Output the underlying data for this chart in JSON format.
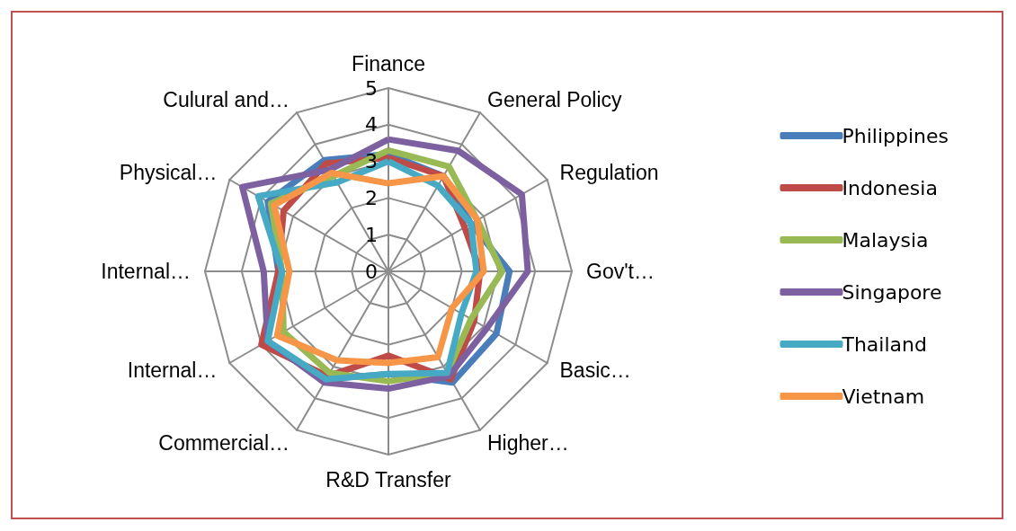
{
  "chart_data": {
    "type": "radar",
    "categories": [
      "Finance",
      "General Policy",
      "Regulation",
      "Gov't…",
      "Basic…",
      "Higher…",
      "R&D Transfer",
      "Commercial…",
      "Internal…",
      "Internal…",
      "Physical…",
      "Culural and…"
    ],
    "ylim": [
      0,
      5
    ],
    "yticks": [
      0,
      1,
      2,
      3,
      4,
      5
    ],
    "grid": true,
    "legend": "right",
    "marker": "none",
    "series": [
      {
        "name": "Philippines",
        "color": "#4a7ebb",
        "values": [
          3.2,
          3.0,
          2.6,
          3.3,
          3.4,
          3.5,
          2.8,
          3.4,
          3.9,
          3.0,
          3.8,
          3.5
        ]
      },
      {
        "name": "Indonesia",
        "color": "#be4b48",
        "values": [
          3.1,
          3.0,
          2.4,
          2.5,
          2.7,
          3.4,
          2.3,
          3.3,
          4.0,
          3.0,
          3.3,
          3.4
        ]
      },
      {
        "name": "Malaysia",
        "color": "#98b954",
        "values": [
          3.3,
          3.3,
          2.8,
          3.1,
          2.6,
          3.2,
          3.0,
          3.2,
          3.3,
          2.9,
          3.7,
          3.0
        ]
      },
      {
        "name": "Singapore",
        "color": "#7d60a0",
        "values": [
          3.6,
          3.8,
          4.2,
          3.8,
          3.1,
          3.3,
          3.2,
          3.5,
          3.8,
          3.4,
          4.6,
          3.2
        ]
      },
      {
        "name": "Thailand",
        "color": "#46aac5",
        "values": [
          3.0,
          2.7,
          2.6,
          2.4,
          2.3,
          3.2,
          2.8,
          3.4,
          3.8,
          2.9,
          4.1,
          2.8
        ]
      },
      {
        "name": "Vietnam",
        "color": "#f79646",
        "values": [
          2.4,
          3.0,
          2.8,
          2.6,
          2.0,
          2.7,
          2.5,
          2.8,
          3.5,
          2.7,
          3.6,
          3.1
        ]
      }
    ]
  }
}
